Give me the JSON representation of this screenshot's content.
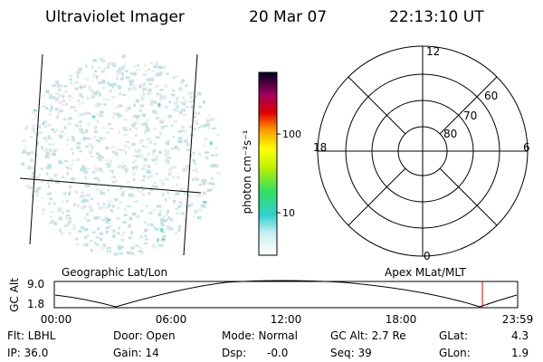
{
  "header": {
    "instrument": "Ultraviolet Imager",
    "date": "20 Mar 07",
    "time": "22:13:10 UT"
  },
  "colorbar": {
    "label": "photon cm⁻²s⁻¹",
    "ticks": [
      "100",
      "10"
    ]
  },
  "polar": {
    "mlt_labels": [
      "12",
      "18",
      "6",
      "0"
    ],
    "lat_labels": [
      "60",
      "70",
      "80"
    ]
  },
  "panel_labels": {
    "left": "Geographic Lat/Lon",
    "right": "Apex MLat/MLT"
  },
  "altitude_plot": {
    "label": "GC Alt",
    "yticks": [
      "9.0",
      "1.8"
    ],
    "xticks": [
      "00:00",
      "06:00",
      "12:00",
      "18:00",
      "23:59"
    ]
  },
  "status": {
    "row1": [
      "Flt: LBHL",
      "Door: Open",
      "Mode: Normal",
      "GC Alt: 2.7 Re",
      "GLat:",
      "4.3"
    ],
    "row2": [
      "IP: 36.0",
      "Gain: 14",
      "Dsp:",
      "-0.0",
      "Seq: 39",
      "GLon:",
      "1.9"
    ]
  }
}
